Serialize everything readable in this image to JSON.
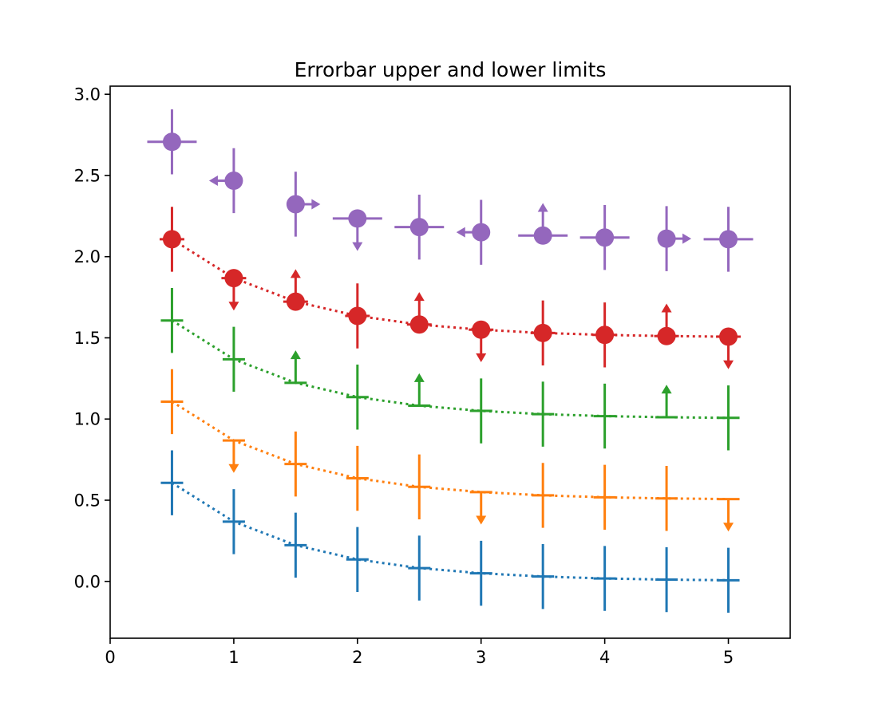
{
  "chart_data": {
    "type": "errorbar",
    "title": "Errorbar upper and lower limits",
    "xlabel": "",
    "ylabel": "",
    "xlim": [
      0,
      5.5
    ],
    "ylim": [
      -0.35,
      3.05
    ],
    "xticks": [
      0,
      1,
      2,
      3,
      4,
      5
    ],
    "yticks": [
      0.0,
      0.5,
      1.0,
      1.5,
      2.0,
      2.5,
      3.0
    ],
    "xtick_labels": [
      "0",
      "1",
      "2",
      "3",
      "4",
      "5"
    ],
    "ytick_labels": [
      "0.0",
      "0.5",
      "1.0",
      "1.5",
      "2.0",
      "2.5",
      "3.0"
    ],
    "grid": false,
    "series": [
      {
        "color": "#1f77b4",
        "marker": "+",
        "linestyle": "dotted",
        "x": [
          0.5,
          1.0,
          1.5,
          2.0,
          2.5,
          3.0,
          3.5,
          4.0,
          4.5,
          5.0
        ],
        "y": [
          0.607,
          0.368,
          0.223,
          0.135,
          0.082,
          0.05,
          0.03,
          0.018,
          0.011,
          0.007
        ],
        "yerr": 0.2,
        "xerr": 0.1,
        "ylims": [
          "none",
          "none",
          "none",
          "none",
          "none",
          "none",
          "none",
          "none",
          "none",
          "none"
        ],
        "xlims": [
          "none",
          "none",
          "none",
          "none",
          "none",
          "none",
          "none",
          "none",
          "none",
          "none"
        ]
      },
      {
        "color": "#ff7f0e",
        "marker": "+",
        "linestyle": "dotted",
        "x": [
          0.5,
          1.0,
          1.5,
          2.0,
          2.5,
          3.0,
          3.5,
          4.0,
          4.5,
          5.0
        ],
        "y": [
          1.107,
          0.868,
          0.723,
          0.635,
          0.582,
          0.55,
          0.53,
          0.518,
          0.511,
          0.507
        ],
        "yerr": 0.2,
        "xerr": 0.1,
        "ylims": [
          "none",
          "upper",
          "none",
          "none",
          "none",
          "upper",
          "none",
          "none",
          "none",
          "upper"
        ],
        "xlims": [
          "none",
          "none",
          "none",
          "none",
          "none",
          "none",
          "none",
          "none",
          "none",
          "none"
        ]
      },
      {
        "color": "#2ca02c",
        "marker": "+",
        "linestyle": "dotted",
        "x": [
          0.5,
          1.0,
          1.5,
          2.0,
          2.5,
          3.0,
          3.5,
          4.0,
          4.5,
          5.0
        ],
        "y": [
          1.607,
          1.368,
          1.223,
          1.135,
          1.082,
          1.05,
          1.03,
          1.018,
          1.011,
          1.007
        ],
        "yerr": 0.2,
        "xerr": 0.1,
        "ylims": [
          "none",
          "none",
          "lower",
          "none",
          "lower",
          "none",
          "none",
          "none",
          "lower",
          "none"
        ],
        "xlims": [
          "none",
          "none",
          "none",
          "none",
          "none",
          "none",
          "none",
          "none",
          "none",
          "none"
        ]
      },
      {
        "color": "#d62728",
        "marker": "o",
        "linestyle": "dotted",
        "x": [
          0.5,
          1.0,
          1.5,
          2.0,
          2.5,
          3.0,
          3.5,
          4.0,
          4.5,
          5.0
        ],
        "y": [
          2.107,
          1.868,
          1.723,
          1.635,
          1.582,
          1.55,
          1.53,
          1.518,
          1.511,
          1.507
        ],
        "yerr": 0.2,
        "xerr": 0.1,
        "ylims": [
          "none",
          "upper",
          "lower",
          "none",
          "lower",
          "upper",
          "none",
          "none",
          "lower",
          "upper"
        ],
        "xlims": [
          "none",
          "none",
          "none",
          "none",
          "none",
          "none",
          "none",
          "none",
          "none",
          "none"
        ]
      },
      {
        "color": "#9467bd",
        "marker": "o",
        "linestyle": "none",
        "x": [
          0.5,
          1.0,
          1.5,
          2.0,
          2.5,
          3.0,
          3.5,
          4.0,
          4.5,
          5.0
        ],
        "y": [
          2.707,
          2.468,
          2.323,
          2.235,
          2.182,
          2.15,
          2.13,
          2.118,
          2.111,
          2.107
        ],
        "yerr": 0.2,
        "xerr": 0.2,
        "ylims": [
          "none",
          "none",
          "none",
          "upper",
          "none",
          "none",
          "lower",
          "none",
          "none",
          "none"
        ],
        "xlims": [
          "none",
          "upper",
          "lower",
          "none",
          "none",
          "upper",
          "none",
          "none",
          "lower",
          "none"
        ]
      }
    ]
  }
}
